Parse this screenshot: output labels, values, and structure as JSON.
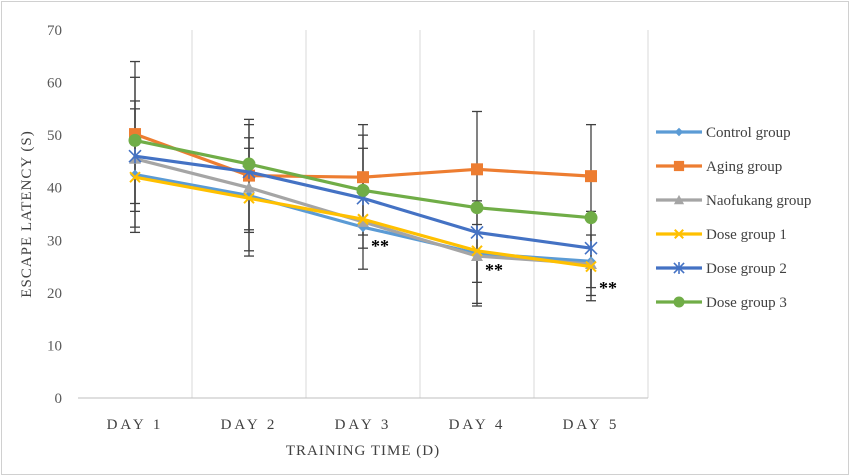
{
  "chart_data": {
    "type": "line",
    "title": "",
    "xlabel": "TRAINING  TIME  (D)",
    "ylabel": "ESCAPE  LATENCY  (S)",
    "categories": [
      "DAY 1",
      "DAY 2",
      "DAY 3",
      "DAY 4",
      "DAY 5"
    ],
    "ylim": [
      0,
      70
    ],
    "yticks": [
      0,
      10,
      20,
      30,
      40,
      50,
      60,
      70
    ],
    "grid": "vertical",
    "legend_position": "right",
    "series": [
      {
        "name": "Control group",
        "color": "#5B9BD5",
        "marker": "diamond",
        "values": [
          42.5,
          38.5,
          32.5,
          27.5,
          26.0
        ]
      },
      {
        "name": "Aging group",
        "color": "#ED7D31",
        "marker": "square",
        "values": [
          50.2,
          42.3,
          42.0,
          43.5,
          42.2
        ]
      },
      {
        "name": "Naofukang group",
        "color": "#A5A5A5",
        "marker": "triangle",
        "values": [
          45.5,
          40.0,
          33.5,
          27.0,
          25.5
        ]
      },
      {
        "name": "Dose group 1",
        "color": "#FFC000",
        "marker": "x",
        "values": [
          42.0,
          38.0,
          34.0,
          28.0,
          25.0
        ]
      },
      {
        "name": "Dose group 2",
        "color": "#4472C4",
        "marker": "star",
        "values": [
          46.0,
          43.0,
          38.0,
          31.5,
          28.5
        ]
      },
      {
        "name": "Dose group 3",
        "color": "#70AD47",
        "marker": "circle",
        "values": [
          49.0,
          44.5,
          39.5,
          36.2,
          34.3
        ]
      }
    ],
    "error_bars": [
      {
        "category": "DAY 1",
        "ranges": [
          [
            31.5,
            64.0
          ],
          [
            32.5,
            61.0
          ],
          [
            35.5,
            56.5
          ],
          [
            37.0,
            55.0
          ]
        ]
      },
      {
        "category": "DAY 2",
        "ranges": [
          [
            27.0,
            53.0
          ],
          [
            28.0,
            52.0
          ],
          [
            31.5,
            49.5
          ],
          [
            32.0,
            47.5
          ]
        ]
      },
      {
        "category": "DAY 3",
        "ranges": [
          [
            24.5,
            52.0
          ],
          [
            28.5,
            50.0
          ],
          [
            31.0,
            47.5
          ]
        ]
      },
      {
        "category": "DAY 4",
        "ranges": [
          [
            17.5,
            54.5
          ],
          [
            18.0,
            37.5
          ],
          [
            22.0,
            33.0
          ]
        ]
      },
      {
        "category": "DAY 5",
        "ranges": [
          [
            18.5,
            52.0
          ],
          [
            19.5,
            35.5
          ],
          [
            21.0,
            31.0
          ]
        ]
      }
    ],
    "annotations": [
      {
        "text": "**",
        "category": "DAY 3",
        "y": 28.5
      },
      {
        "text": "**",
        "category": "DAY 4",
        "y": 24.0
      },
      {
        "text": "**",
        "category": "DAY 5",
        "y": 20.5
      }
    ]
  }
}
